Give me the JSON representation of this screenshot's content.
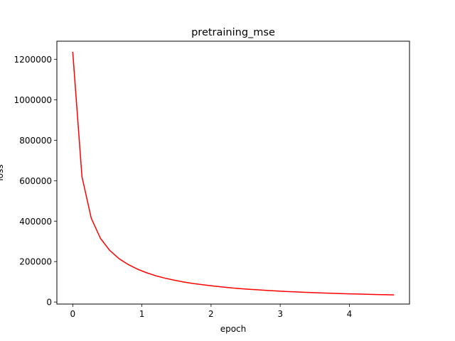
{
  "chart_data": {
    "type": "line",
    "title": "pretraining_mse",
    "xlabel": "epoch",
    "ylabel": "loss",
    "xlim": [
      -0.23,
      4.87
    ],
    "ylim": [
      -10000,
      1290000
    ],
    "xticks": [
      0,
      1,
      2,
      3,
      4
    ],
    "xtick_labels": [
      "0",
      "1",
      "2",
      "3",
      "4"
    ],
    "yticks": [
      0,
      200000,
      400000,
      600000,
      800000,
      1000000,
      1200000
    ],
    "ytick_labels": [
      "0",
      "200000",
      "400000",
      "600000",
      "800000",
      "1000000",
      "1200000"
    ],
    "grid": false,
    "legend": "none",
    "series": [
      {
        "color": "#ff0000",
        "x": [
          0.0,
          0.133,
          0.267,
          0.4,
          0.533,
          0.667,
          0.8,
          0.933,
          1.067,
          1.2,
          1.333,
          1.467,
          1.6,
          1.733,
          1.867,
          2.0,
          2.133,
          2.267,
          2.4,
          2.533,
          2.667,
          2.8,
          2.933,
          3.067,
          3.2,
          3.333,
          3.467,
          3.6,
          3.733,
          3.867,
          4.0,
          4.133,
          4.267,
          4.4,
          4.533,
          4.64
        ],
        "y": [
          1235000,
          620000,
          415000,
          315000,
          256000,
          215000,
          186000,
          163000,
          145000,
          130000,
          118000,
          108000,
          99500,
          92000,
          86000,
          80500,
          75500,
          71000,
          67000,
          63500,
          60500,
          57500,
          55000,
          52500,
          50500,
          48500,
          46500,
          45000,
          43500,
          42000,
          40700,
          39500,
          38300,
          37200,
          36200,
          35500
        ]
      }
    ]
  }
}
